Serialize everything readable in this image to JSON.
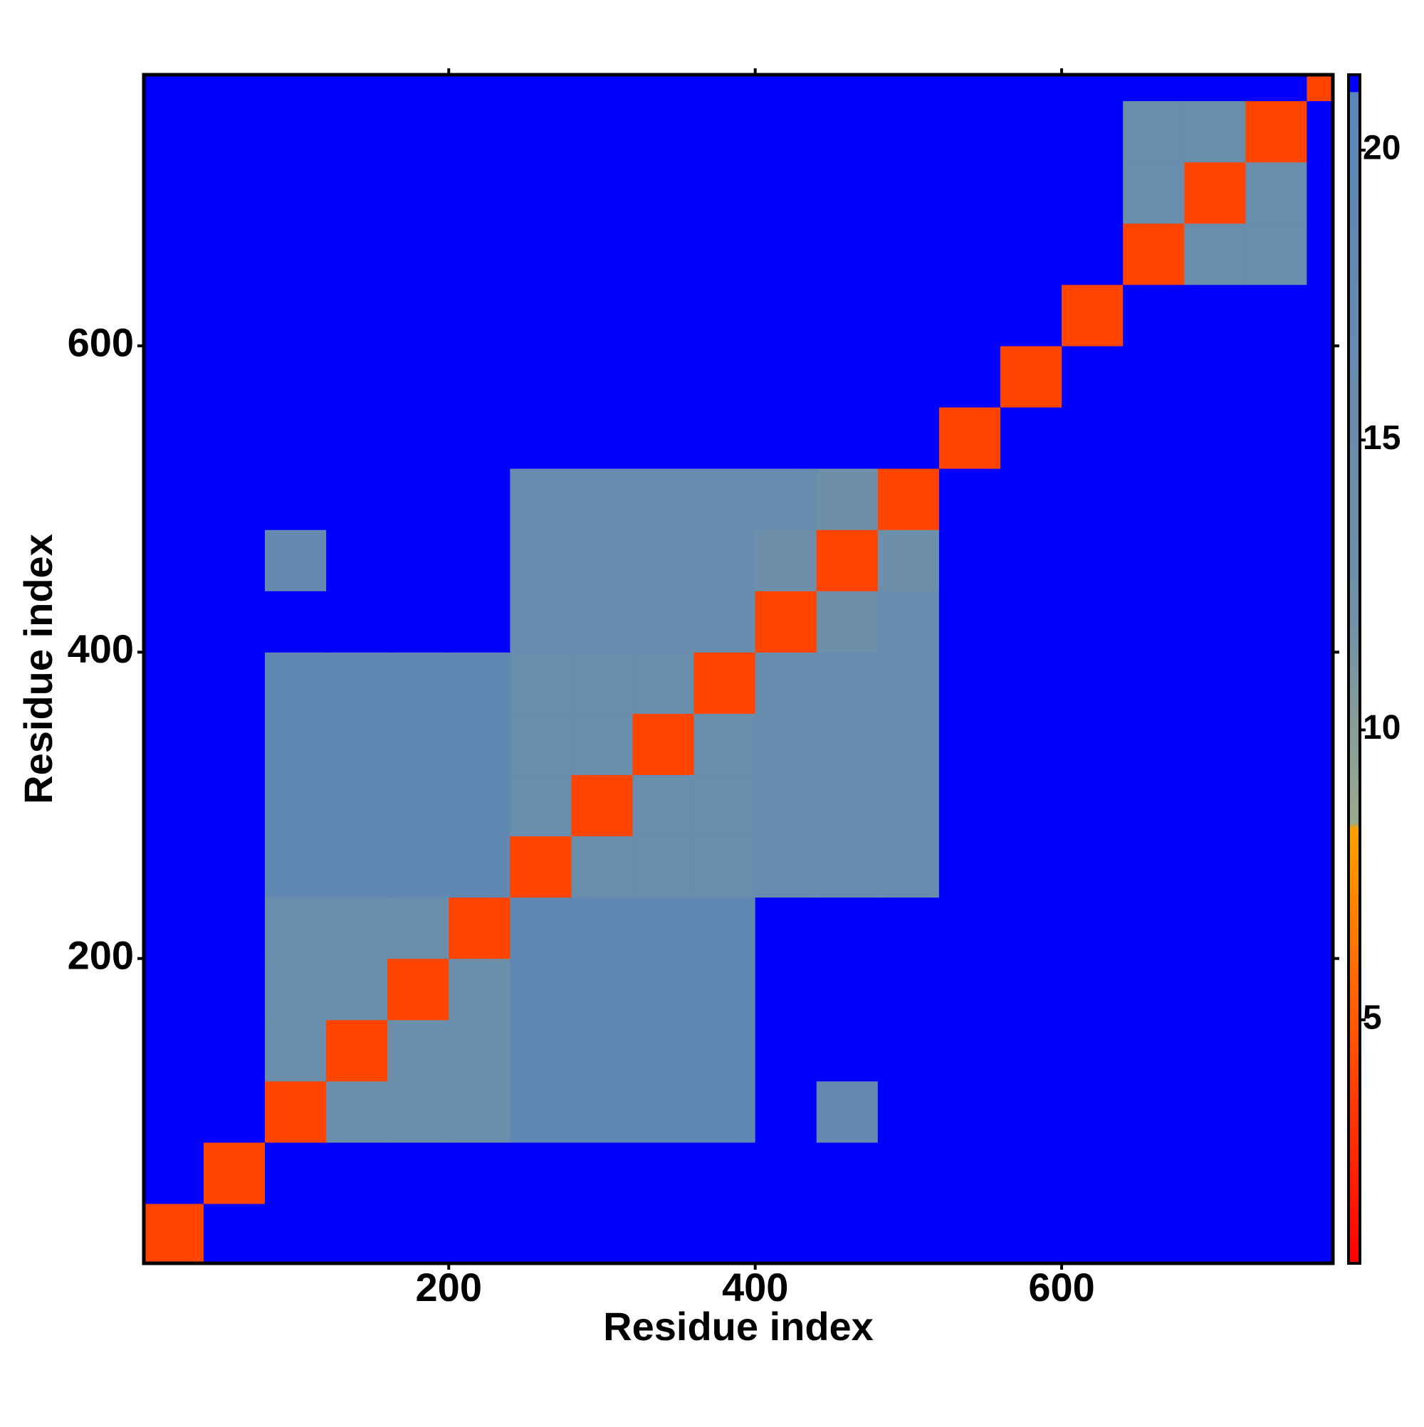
{
  "chart_data": {
    "type": "heatmap",
    "xlabel": "Residue index",
    "ylabel": "Residue index",
    "xlim": [
      1,
      777
    ],
    "ylim": [
      1,
      777
    ],
    "xticks": [
      200,
      400,
      600
    ],
    "yticks": [
      200,
      400,
      600
    ],
    "xbins": [
      1,
      40,
      80,
      120,
      160,
      200,
      240,
      280,
      320,
      360,
      400,
      440,
      480,
      520,
      560,
      600,
      640,
      680,
      720,
      760,
      777
    ],
    "ybins": [
      1,
      40,
      80,
      120,
      160,
      200,
      240,
      280,
      320,
      360,
      400,
      440,
      480,
      520,
      560,
      600,
      640,
      680,
      720,
      760,
      777
    ],
    "values": [
      [
        4,
        21.3,
        21.3,
        21.3,
        21.3,
        21.3,
        21.3,
        21.3,
        21.3,
        21.3,
        21.3,
        21.3,
        21.3,
        21.3,
        21.3,
        21.3,
        21.3,
        21.3,
        21.3,
        21.3
      ],
      [
        21.3,
        4,
        21.3,
        21.3,
        21.3,
        21.3,
        21.3,
        21.3,
        21.3,
        21.3,
        21.3,
        21.3,
        21.3,
        21.3,
        21.3,
        21.3,
        21.3,
        21.3,
        21.3,
        21.3
      ],
      [
        21.3,
        21.3,
        4,
        14,
        14,
        14,
        19,
        19,
        19,
        19,
        21.3,
        17,
        21.3,
        21.3,
        21.3,
        21.3,
        21.3,
        21.3,
        21.3,
        21.3
      ],
      [
        21.3,
        21.3,
        14,
        4,
        14,
        14,
        19,
        19,
        19,
        19,
        21.3,
        21.3,
        21.3,
        21.3,
        21.3,
        21.3,
        21.3,
        21.3,
        21.3,
        21.3
      ],
      [
        21.3,
        21.3,
        14,
        14,
        4,
        14,
        19,
        19,
        19,
        19,
        21.3,
        21.3,
        21.3,
        21.3,
        21.3,
        21.3,
        21.3,
        21.3,
        21.3,
        21.3
      ],
      [
        21.3,
        21.3,
        14,
        14,
        14,
        4,
        19,
        19,
        19,
        19,
        21.3,
        21.3,
        21.3,
        21.3,
        21.3,
        21.3,
        21.3,
        21.3,
        21.3,
        21.3
      ],
      [
        21.3,
        21.3,
        19,
        19,
        19,
        19,
        4,
        15,
        15,
        15,
        16,
        16,
        16,
        21.3,
        21.3,
        21.3,
        21.3,
        21.3,
        21.3,
        21.3
      ],
      [
        21.3,
        21.3,
        19,
        19,
        19,
        19,
        15,
        4,
        15,
        15,
        16,
        16,
        16,
        21.3,
        21.3,
        21.3,
        21.3,
        21.3,
        21.3,
        21.3
      ],
      [
        21.3,
        21.3,
        19,
        19,
        19,
        19,
        15,
        15,
        4,
        15,
        16,
        16,
        16,
        21.3,
        21.3,
        21.3,
        21.3,
        21.3,
        21.3,
        21.3
      ],
      [
        21.3,
        21.3,
        19,
        19,
        19,
        19,
        15,
        15,
        15,
        4,
        16,
        16,
        16,
        21.3,
        21.3,
        21.3,
        21.3,
        21.3,
        21.3,
        21.3
      ],
      [
        21.3,
        21.3,
        21.3,
        21.3,
        21.3,
        21.3,
        16,
        16,
        16,
        16,
        4,
        13,
        16,
        21.3,
        21.3,
        21.3,
        21.3,
        21.3,
        21.3,
        21.3
      ],
      [
        21.3,
        21.3,
        17,
        21.3,
        21.3,
        21.3,
        16,
        16,
        16,
        16,
        13,
        4,
        13,
        21.3,
        21.3,
        21.3,
        21.3,
        21.3,
        21.3,
        21.3
      ],
      [
        21.3,
        21.3,
        21.3,
        21.3,
        21.3,
        21.3,
        16,
        16,
        16,
        16,
        16,
        13,
        4,
        21.3,
        21.3,
        21.3,
        21.3,
        21.3,
        21.3,
        21.3
      ],
      [
        21.3,
        21.3,
        21.3,
        21.3,
        21.3,
        21.3,
        21.3,
        21.3,
        21.3,
        21.3,
        21.3,
        21.3,
        21.3,
        4,
        21.3,
        21.3,
        21.3,
        21.3,
        21.3,
        21.3
      ],
      [
        21.3,
        21.3,
        21.3,
        21.3,
        21.3,
        21.3,
        21.3,
        21.3,
        21.3,
        21.3,
        21.3,
        21.3,
        21.3,
        21.3,
        4,
        21.3,
        21.3,
        21.3,
        21.3,
        21.3
      ],
      [
        21.3,
        21.3,
        21.3,
        21.3,
        21.3,
        21.3,
        21.3,
        21.3,
        21.3,
        21.3,
        21.3,
        21.3,
        21.3,
        21.3,
        21.3,
        4,
        21.3,
        21.3,
        21.3,
        21.3
      ],
      [
        21.3,
        21.3,
        21.3,
        21.3,
        21.3,
        21.3,
        21.3,
        21.3,
        21.3,
        21.3,
        21.3,
        21.3,
        21.3,
        21.3,
        21.3,
        21.3,
        4,
        15,
        15,
        21.3
      ],
      [
        21.3,
        21.3,
        21.3,
        21.3,
        21.3,
        21.3,
        21.3,
        21.3,
        21.3,
        21.3,
        21.3,
        21.3,
        21.3,
        21.3,
        21.3,
        21.3,
        15,
        4,
        15,
        21.3
      ],
      [
        21.3,
        21.3,
        21.3,
        21.3,
        21.3,
        21.3,
        21.3,
        21.3,
        21.3,
        21.3,
        21.3,
        21.3,
        21.3,
        21.3,
        21.3,
        21.3,
        15,
        15,
        4,
        21.3
      ],
      [
        21.3,
        21.3,
        21.3,
        21.3,
        21.3,
        21.3,
        21.3,
        21.3,
        21.3,
        21.3,
        21.3,
        21.3,
        21.3,
        21.3,
        21.3,
        21.3,
        21.3,
        21.3,
        21.3,
        4
      ]
    ],
    "colorbar": {
      "zlim": [
        0.8,
        21.3
      ],
      "ticks": [
        5,
        10,
        15,
        20
      ],
      "stops": [
        {
          "value": 0.8,
          "color": "#ff0000"
        },
        {
          "value": 8.3,
          "color": "#ffa000"
        },
        {
          "value": 8.4,
          "color": "#9aaa8c"
        },
        {
          "value": 12,
          "color": "#7090a8"
        },
        {
          "value": 21,
          "color": "#5b86b5"
        },
        {
          "value": 21.01,
          "color": "#0000ff"
        },
        {
          "value": 21.3,
          "color": "#0000ff"
        }
      ]
    }
  }
}
